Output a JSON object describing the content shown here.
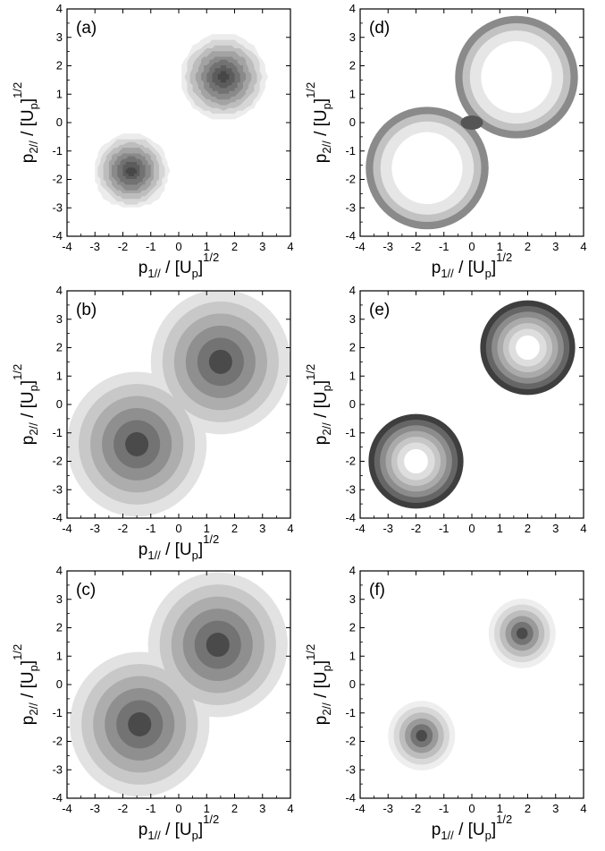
{
  "figure": {
    "axis_labels": {
      "x_main": "p",
      "x_sub": "1//",
      "x_mid": " / [U",
      "x_sub2": "p",
      "x_end": "]",
      "x_sup": "1/2",
      "y_main": "p",
      "y_sub": "2//",
      "y_mid": " / [U",
      "y_sub2": "p",
      "y_end": "]",
      "y_sup": "1/2"
    }
  },
  "chart_data": [
    {
      "panel": "(a)",
      "type": "heatmap",
      "xlim": [
        -4,
        4
      ],
      "ylim": [
        -4,
        4
      ],
      "xticks": [
        "-4",
        "-3",
        "-2",
        "-1",
        "0",
        "1",
        "2",
        "3",
        "4"
      ],
      "yticks": [
        "-4",
        "-3",
        "-2",
        "-1",
        "0",
        "1",
        "2",
        "3",
        "4"
      ],
      "peaks": [
        {
          "x": -1.7,
          "y": -1.7,
          "radius": 1.35
        },
        {
          "x": 1.6,
          "y": 1.6,
          "radius": 1.55
        }
      ],
      "levels": [
        "#ececec",
        "#d6d6d6",
        "#bdbdbd",
        "#a3a3a3",
        "#8a8a8a",
        "#727272",
        "#5c5c5c",
        "#474747"
      ],
      "pixelated": true,
      "show_xlabel": true,
      "show_ylabel": true
    },
    {
      "panel": "(b)",
      "type": "heatmap",
      "xlim": [
        -4,
        4
      ],
      "ylim": [
        -4,
        4
      ],
      "xticks": [
        "-4",
        "-3",
        "-2",
        "-1",
        "0",
        "1",
        "2",
        "3",
        "4"
      ],
      "yticks": [
        "-4",
        "-3",
        "-2",
        "-1",
        "0",
        "1",
        "2",
        "3",
        "4"
      ],
      "peaks": [
        {
          "x": -1.5,
          "y": -1.4,
          "radius": 2.5
        },
        {
          "x": 1.5,
          "y": 1.5,
          "radius": 2.5
        }
      ],
      "levels": [
        "#e2e2e2",
        "#c8c8c8",
        "#adadad",
        "#8f8f8f",
        "#737373",
        "#4a4a4a"
      ],
      "center_blob": true,
      "show_xlabel": true,
      "show_ylabel": true
    },
    {
      "panel": "(c)",
      "type": "heatmap",
      "xlim": [
        -4,
        4
      ],
      "ylim": [
        -4,
        4
      ],
      "xticks": [
        "-4",
        "-3",
        "-2",
        "-1",
        "0",
        "1",
        "2",
        "3",
        "4"
      ],
      "yticks": [
        "-4",
        "-3",
        "-2",
        "-1",
        "0",
        "1",
        "2",
        "3",
        "4"
      ],
      "peaks": [
        {
          "x": -1.4,
          "y": -1.4,
          "radius": 2.5
        },
        {
          "x": 1.4,
          "y": 1.4,
          "radius": 2.5
        }
      ],
      "levels": [
        "#e2e2e2",
        "#c8c8c8",
        "#adadad",
        "#8f8f8f",
        "#737373",
        "#4a4a4a"
      ],
      "center_blob": true,
      "show_xlabel": true,
      "show_ylabel": true
    },
    {
      "panel": "(d)",
      "type": "heatmap",
      "xlim": [
        -4,
        4
      ],
      "ylim": [
        -4,
        4
      ],
      "xticks": [
        "-4",
        "-3",
        "-2",
        "-1",
        "0",
        "1",
        "2",
        "3",
        "4"
      ],
      "yticks": [
        "-4",
        "-3",
        "-2",
        "-1",
        "0",
        "1",
        "2",
        "3",
        "4"
      ],
      "peaks": [
        {
          "x": -1.6,
          "y": -1.6,
          "radius": 2.2
        },
        {
          "x": 1.6,
          "y": 1.6,
          "radius": 2.2
        }
      ],
      "rim_colors": [
        "#8a8a8a",
        "#c2c2c2",
        "#e6e6e6"
      ],
      "interior_color": "#ffffff",
      "show_xlabel": true,
      "show_ylabel": true
    },
    {
      "panel": "(e)",
      "type": "heatmap",
      "xlim": [
        -4,
        4
      ],
      "ylim": [
        -4,
        4
      ],
      "xticks": [
        "-4",
        "-3",
        "-2",
        "-1",
        "0",
        "1",
        "2",
        "3",
        "4"
      ],
      "yticks": [
        "-4",
        "-3",
        "-2",
        "-1",
        "0",
        "1",
        "2",
        "3",
        "4"
      ],
      "peaks": [
        {
          "x": -2.0,
          "y": -2.0,
          "radius": 1.7
        },
        {
          "x": 2.0,
          "y": 2.0,
          "radius": 1.7
        }
      ],
      "rim_colors": [
        "#3e3e3e",
        "#666666",
        "#8c8c8c",
        "#aaaaaa",
        "#c6c6c6",
        "#dedede"
      ],
      "interior_color": "#ffffff",
      "show_xlabel": false,
      "show_ylabel": true
    },
    {
      "panel": "(f)",
      "type": "heatmap",
      "xlim": [
        -4,
        4
      ],
      "ylim": [
        -4,
        4
      ],
      "xticks": [
        "-4",
        "-3",
        "-2",
        "-1",
        "0",
        "1",
        "2",
        "3",
        "4"
      ],
      "yticks": [
        "-4",
        "-3",
        "-2",
        "-1",
        "0",
        "1",
        "2",
        "3",
        "4"
      ],
      "peaks": [
        {
          "x": -1.8,
          "y": -1.8,
          "radius": 1.2
        },
        {
          "x": 1.8,
          "y": 1.8,
          "radius": 1.2
        }
      ],
      "levels": [
        "#eeeeee",
        "#d8d8d8",
        "#bdbdbd",
        "#9a9a9a",
        "#747474",
        "#4a4a4a"
      ],
      "show_xlabel": true,
      "show_ylabel": true
    }
  ]
}
